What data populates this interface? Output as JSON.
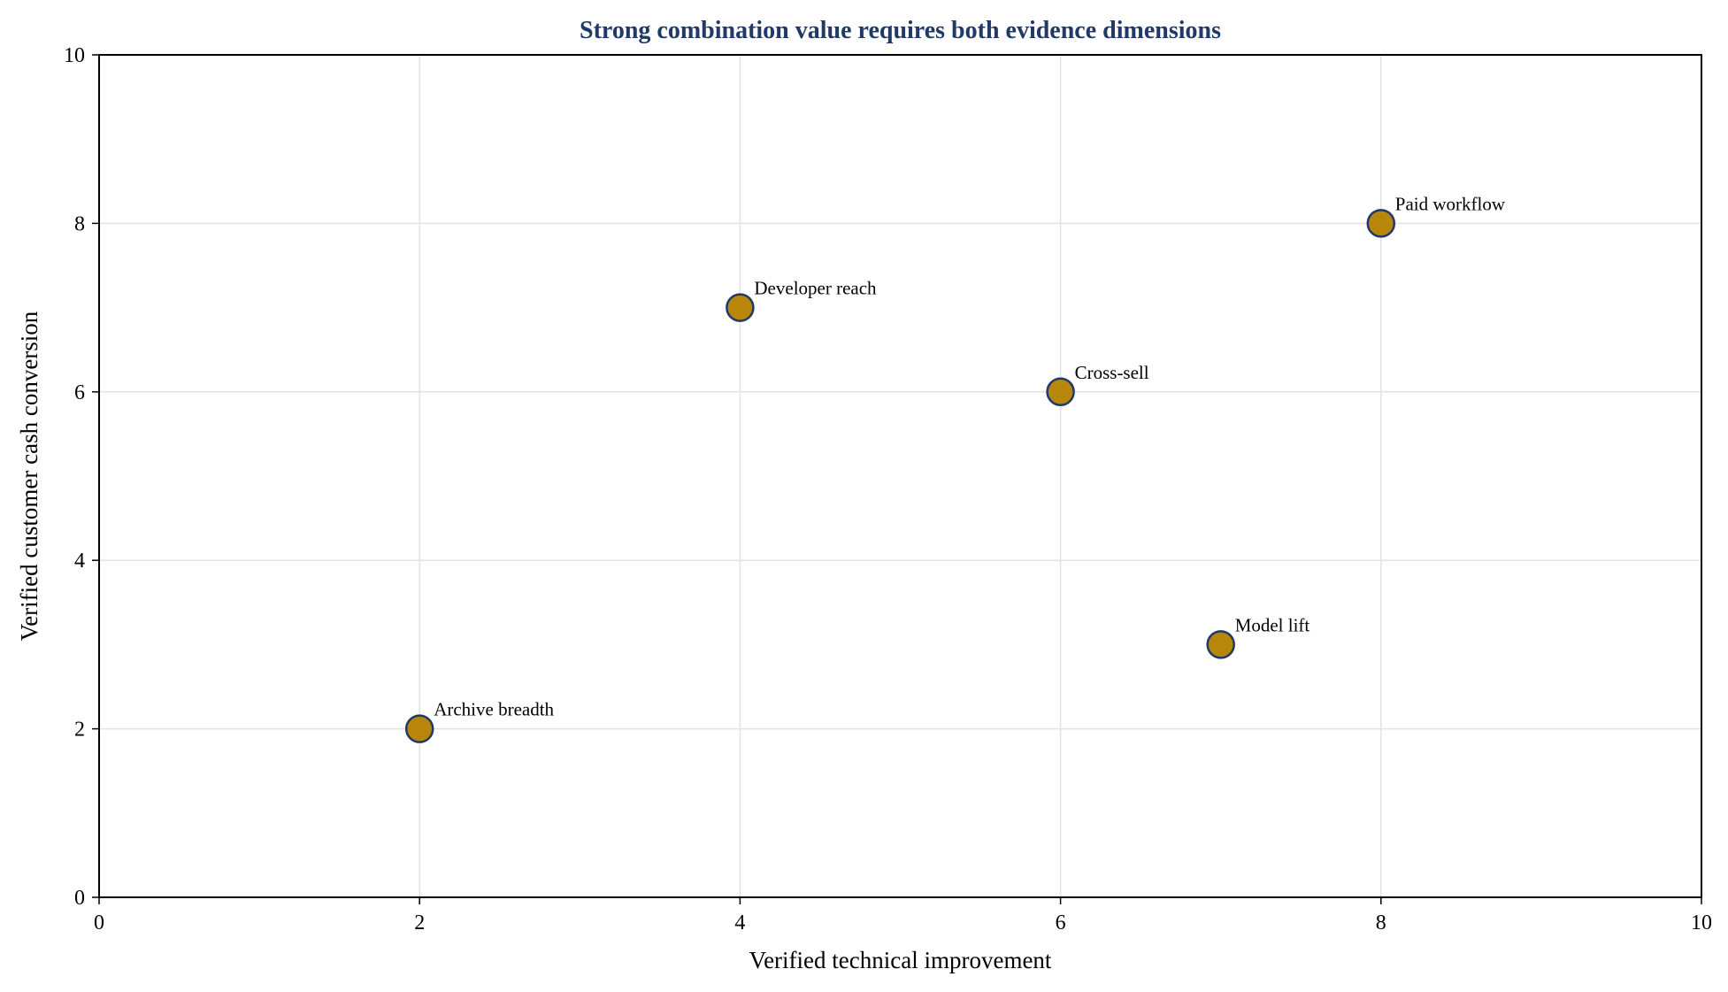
{
  "chart_data": {
    "type": "scatter",
    "title": "Strong combination value requires both evidence dimensions",
    "xlabel": "Verified technical improvement",
    "ylabel": "Verified customer cash conversion",
    "xlim": [
      0,
      10
    ],
    "ylim": [
      0,
      10
    ],
    "xticks": [
      0,
      2,
      4,
      6,
      8,
      10
    ],
    "yticks": [
      0,
      2,
      4,
      6,
      8,
      10
    ],
    "grid": true,
    "legend": "none",
    "points": [
      {
        "label": "Archive breadth",
        "x": 2,
        "y": 2
      },
      {
        "label": "Developer reach",
        "x": 4,
        "y": 7
      },
      {
        "label": "Cross-sell",
        "x": 6,
        "y": 6
      },
      {
        "label": "Model lift",
        "x": 7,
        "y": 3
      },
      {
        "label": "Paid workflow",
        "x": 8,
        "y": 8
      }
    ],
    "colors": {
      "title": "#1f3a66",
      "marker_fill": "#b8860b",
      "marker_edge": "#1f3a66",
      "grid": "#e3e3e3",
      "axis": "#000000"
    }
  }
}
